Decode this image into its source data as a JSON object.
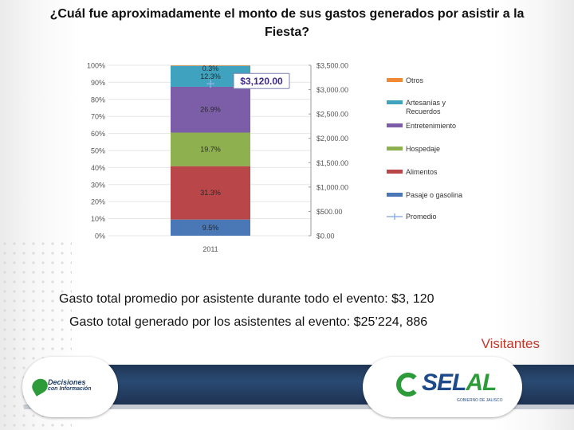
{
  "slide": {
    "title_line1": "¿Cuál fue aproximadamente el monto de sus gastos generados por asistir a la",
    "title_line2": "Fiesta?",
    "line1": "Gasto total promedio por asistente durante todo el evento: $3, 120",
    "line2": "Gasto total generado por los asistentes al evento: $25’224, 886",
    "section_label": "Visitantes",
    "logo_left_line1": "Decisiones",
    "logo_left_line2": "con Información",
    "logo_right_word_a": "SEL",
    "logo_right_word_b": "AL",
    "logo_right_sub": "GOBIERNO DE JALISCO"
  },
  "colors": {
    "accent_red": "#c0392b",
    "footer_blue": "#24406a",
    "logo_green": "#2e9b3a"
  },
  "chart_data": {
    "type": "bar",
    "stacked": "percent",
    "categories": [
      "2011"
    ],
    "series": [
      {
        "name": "Pasaje o gasolina",
        "values": [
          9.5
        ],
        "label": "9.5%",
        "color": "#4a78b6"
      },
      {
        "name": "Alimentos",
        "values": [
          31.3
        ],
        "label": "31.3%",
        "color": "#b9474a"
      },
      {
        "name": "Hospedaje",
        "values": [
          19.7
        ],
        "label": "19.7%",
        "color": "#8fb04f"
      },
      {
        "name": "Entretenimiento",
        "values": [
          26.9
        ],
        "label": "26.9%",
        "color": "#7b5ea7"
      },
      {
        "name": "Artesanías y Recuerdos",
        "values": [
          12.3
        ],
        "label": "12.3%",
        "color": "#3fa2bf"
      },
      {
        "name": "Otros",
        "values": [
          0.3
        ],
        "label": "0.3%",
        "color": "#f08a36"
      }
    ],
    "line_series": {
      "name": "Promedio",
      "values": [
        3120
      ],
      "label": "$3,120.00",
      "color": "#8fb0e8"
    },
    "left_axis": {
      "ticks": [
        "0%",
        "10%",
        "20%",
        "30%",
        "40%",
        "50%",
        "60%",
        "70%",
        "80%",
        "90%",
        "100%"
      ],
      "range": [
        0,
        100
      ]
    },
    "right_axis": {
      "ticks": [
        "$0.00",
        "$500.00",
        "$1,000.00",
        "$1,500.00",
        "$2,000.00",
        "$2,500.00",
        "$3,000.00",
        "$3,500.00"
      ],
      "range": [
        0,
        3500
      ]
    },
    "legend": {
      "position": "right",
      "entries": [
        "Otros",
        "Artesanías y Recuerdos",
        "Entretenimiento",
        "Hospedaje",
        "Alimentos",
        "Pasaje o gasolina",
        "Promedio"
      ]
    }
  }
}
